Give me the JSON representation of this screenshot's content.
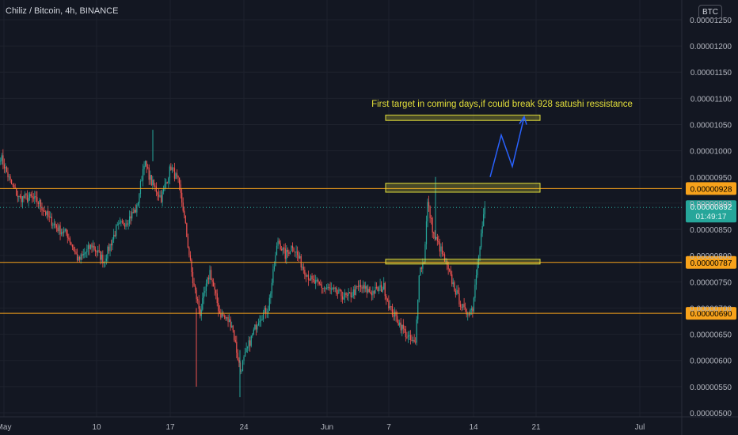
{
  "header": {
    "title": "Chiliz / Bitcoin, 4h, BINANCE",
    "currency_button": "BTC"
  },
  "chart_data": {
    "type": "candlestick",
    "title": "Chiliz / Bitcoin, 4h, BINANCE",
    "y_ticks": [
      "0.00001250",
      "0.00001200",
      "0.00001150",
      "0.00001100",
      "0.00001050",
      "0.00001000",
      "0.00000950",
      "0.00000900",
      "0.00000850",
      "0.00000800",
      "0.00000750",
      "0.00000700",
      "0.00000650",
      "0.00000600",
      "0.00000550",
      "0.00000500"
    ],
    "ylim": [
      5e-06,
      1.265e-05
    ],
    "x_ticks": [
      "May",
      "10",
      "17",
      "24",
      "Jun",
      "7",
      "14",
      "21",
      "Jul"
    ],
    "horizontal_levels": [
      {
        "value": 9.28e-06,
        "label": "0.00000928"
      },
      {
        "value": 7.87e-06,
        "label": "0.00000787"
      },
      {
        "value": 6.9e-06,
        "label": "0.00000690"
      }
    ],
    "last_price": {
      "value": 8.92e-06,
      "label": "0.00000892",
      "countdown": "01:49:17"
    },
    "zones": [
      {
        "from": 1.058e-05,
        "to": 1.068e-05
      },
      {
        "from": 9.21e-06,
        "to": 9.38e-06
      },
      {
        "from": 7.84e-06,
        "to": 7.93e-06
      }
    ],
    "annotation": "First  target in coming days,if could break 928 satushi ressistance",
    "path_points": [
      9.5e-06,
      1.03e-05,
      9.7e-06,
      1.065e-05
    ],
    "anchors": [
      {
        "t": 0,
        "p": 9.9e-06
      },
      {
        "t": 8,
        "p": 9.4e-06
      },
      {
        "t": 15,
        "p": 9.1e-06
      },
      {
        "t": 25,
        "p": 9.1e-06
      },
      {
        "t": 32,
        "p": 9e-06
      },
      {
        "t": 40,
        "p": 8.7e-06
      },
      {
        "t": 48,
        "p": 8.5e-06
      },
      {
        "t": 55,
        "p": 8.4e-06
      },
      {
        "t": 64,
        "p": 7.9e-06
      },
      {
        "t": 75,
        "p": 8.2e-06
      },
      {
        "t": 85,
        "p": 7.9e-06
      },
      {
        "t": 95,
        "p": 8.5e-06
      },
      {
        "t": 105,
        "p": 8.7e-06
      },
      {
        "t": 112,
        "p": 8.9e-06
      },
      {
        "t": 118,
        "p": 9.8e-06
      },
      {
        "t": 124,
        "p": 9.4e-06
      },
      {
        "t": 132,
        "p": 9.1e-06
      },
      {
        "t": 140,
        "p": 9.7e-06
      },
      {
        "t": 146,
        "p": 9.4e-06
      },
      {
        "t": 150,
        "p": 8.9e-06
      },
      {
        "t": 158,
        "p": 7.5e-06
      },
      {
        "t": 164,
        "p": 6.9e-06
      },
      {
        "t": 172,
        "p": 7.7e-06
      },
      {
        "t": 180,
        "p": 6.9e-06
      },
      {
        "t": 190,
        "p": 6.7e-06
      },
      {
        "t": 197,
        "p": 5.8e-06
      },
      {
        "t": 204,
        "p": 6.3e-06
      },
      {
        "t": 212,
        "p": 6.8e-06
      },
      {
        "t": 220,
        "p": 7e-06
      },
      {
        "t": 228,
        "p": 8.3e-06
      },
      {
        "t": 234,
        "p": 8e-06
      },
      {
        "t": 240,
        "p": 8.2e-06
      },
      {
        "t": 248,
        "p": 7.8e-06
      },
      {
        "t": 256,
        "p": 7.5e-06
      },
      {
        "t": 265,
        "p": 7.4e-06
      },
      {
        "t": 275,
        "p": 7.3e-06
      },
      {
        "t": 285,
        "p": 7.2e-06
      },
      {
        "t": 295,
        "p": 7.4e-06
      },
      {
        "t": 305,
        "p": 7.3e-06
      },
      {
        "t": 315,
        "p": 7.4e-06
      },
      {
        "t": 320,
        "p": 7e-06
      },
      {
        "t": 328,
        "p": 6.7e-06
      },
      {
        "t": 336,
        "p": 6.4e-06
      },
      {
        "t": 341,
        "p": 6.3e-06
      },
      {
        "t": 344,
        "p": 7.7e-06
      },
      {
        "t": 348,
        "p": 7.9e-06
      },
      {
        "t": 351,
        "p": 9e-06
      },
      {
        "t": 356,
        "p": 8.4e-06
      },
      {
        "t": 362,
        "p": 8.1e-06
      },
      {
        "t": 368,
        "p": 7.7e-06
      },
      {
        "t": 376,
        "p": 7.2e-06
      },
      {
        "t": 382,
        "p": 6.9e-06
      },
      {
        "t": 388,
        "p": 7e-06
      },
      {
        "t": 392,
        "p": 7.9e-06
      },
      {
        "t": 395,
        "p": 8.4e-06
      },
      {
        "t": 398,
        "p": 8.9e-06
      }
    ]
  },
  "colors": {
    "background": "#131722",
    "up": "#26a69a",
    "down": "#ef5350",
    "level": "#f7a21b",
    "zone": "#e3df3a",
    "arrow": "#2962ff",
    "axis_text": "#b2b5be",
    "grid": "#1e222d"
  }
}
